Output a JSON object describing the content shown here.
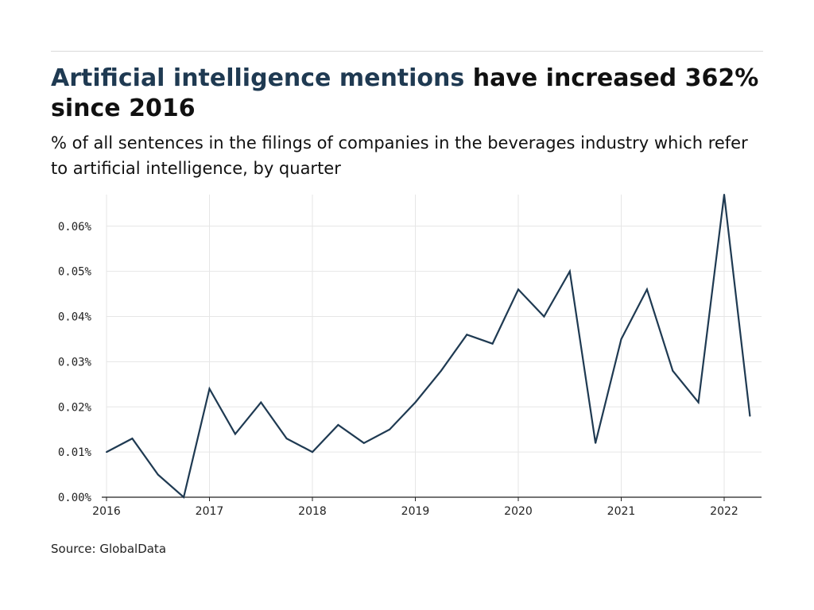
{
  "header": {
    "title_highlight": "Artificial intelligence mentions",
    "title_rest": " have increased 362% since 2016",
    "subtitle": "% of all sentences in the filings of companies in the beverages industry which refer to artificial intelligence, by quarter"
  },
  "footer": {
    "source": "Source: GlobalData"
  },
  "colors": {
    "line": "#1f3a52",
    "highlight": "#1f3a52",
    "grid": "#e6e6e6",
    "axis": "#222222"
  },
  "chart_data": {
    "type": "line",
    "x": [
      "2016-Q1",
      "2016-Q2",
      "2016-Q3",
      "2016-Q4",
      "2017-Q1",
      "2017-Q2",
      "2017-Q3",
      "2017-Q4",
      "2018-Q1",
      "2018-Q2",
      "2018-Q3",
      "2018-Q4",
      "2019-Q1",
      "2019-Q2",
      "2019-Q3",
      "2019-Q4",
      "2020-Q1",
      "2020-Q2",
      "2020-Q3",
      "2020-Q4",
      "2021-Q1",
      "2021-Q2",
      "2021-Q3",
      "2021-Q4",
      "2022-Q1",
      "2022-Q2"
    ],
    "series": [
      {
        "values": [
          0.01,
          0.013,
          0.005,
          0.0,
          0.024,
          0.014,
          0.021,
          0.013,
          0.01,
          0.016,
          0.012,
          0.015,
          0.021,
          0.028,
          0.036,
          0.034,
          0.046,
          0.04,
          0.05,
          0.012,
          0.035,
          0.046,
          0.028,
          0.021,
          0.067,
          0.018
        ]
      }
    ],
    "x_ticks": [
      "2016",
      "2017",
      "2018",
      "2019",
      "2020",
      "2021",
      "2022"
    ],
    "y_ticks": [
      0,
      0.01,
      0.02,
      0.03,
      0.04,
      0.05,
      0.06
    ],
    "y_tick_labels": [
      "0.00%",
      "0.01%",
      "0.02%",
      "0.03%",
      "0.04%",
      "0.05%",
      "0.06%"
    ],
    "ylim": [
      0,
      0.067
    ],
    "xlim": [
      "2016-Q1",
      "2022-Q2"
    ],
    "grid": true,
    "legend": "none"
  }
}
